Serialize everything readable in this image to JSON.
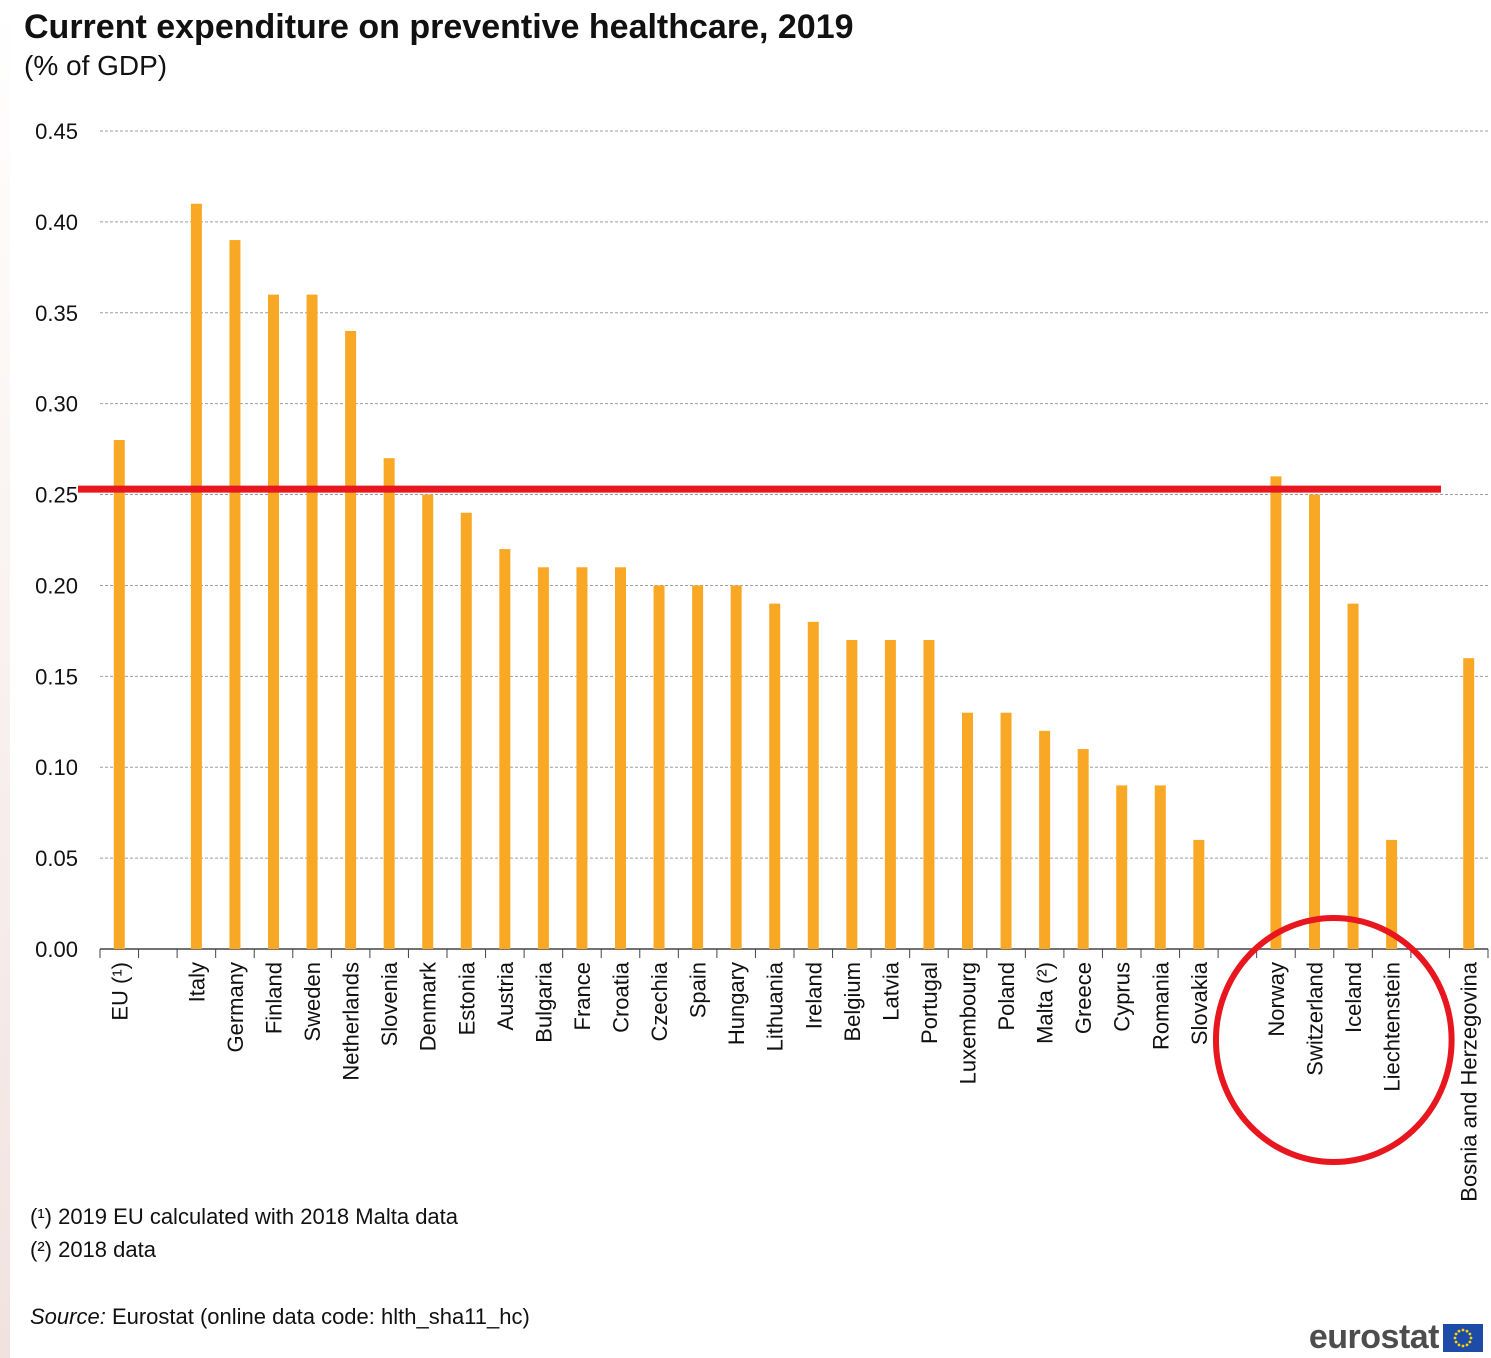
{
  "title": "Current expenditure on preventive healthcare, 2019",
  "subtitle": "(% of GDP)",
  "notes": [
    "(¹) 2019 EU calculated with 2018 Malta data",
    "(²) 2018 data"
  ],
  "source": {
    "label": "Source:",
    "text": " Eurostat (online data code: hlth_sha11_hc)"
  },
  "logo_text": "eurostat",
  "colors": {
    "bar": "#f9a825",
    "grid": "#9e9e9e",
    "axis": "#444444",
    "annotation": "#e8161e",
    "text": "#111111"
  },
  "chart_data": {
    "type": "bar",
    "title": "Current expenditure on preventive healthcare, 2019",
    "subtitle": "(% of GDP)",
    "xlabel": "",
    "ylabel": "",
    "ylim": [
      0,
      0.45
    ],
    "yticks": [
      "0.00",
      "0.05",
      "0.10",
      "0.15",
      "0.20",
      "0.25",
      "0.30",
      "0.35",
      "0.40",
      "0.45"
    ],
    "grid": true,
    "categories": [
      "EU (¹)",
      "",
      "Italy",
      "Germany",
      "Finland",
      "Sweden",
      "Netherlands",
      "Slovenia",
      "Denmark",
      "Estonia",
      "Austria",
      "Bulgaria",
      "France",
      "Croatia",
      "Czechia",
      "Spain",
      "Hungary",
      "Lithuania",
      "Ireland",
      "Belgium",
      "Latvia",
      "Portugal",
      "Luxembourg",
      "Poland",
      "Malta (²)",
      "Greece",
      "Cyprus",
      "Romania",
      "Slovakia",
      "",
      "Norway",
      "Switzerland",
      "Iceland",
      "Liechtenstein",
      "",
      "Bosnia and Herzegovina"
    ],
    "values": [
      0.28,
      null,
      0.41,
      0.39,
      0.36,
      0.36,
      0.34,
      0.27,
      0.25,
      0.24,
      0.22,
      0.21,
      0.21,
      0.21,
      0.2,
      0.2,
      0.2,
      0.19,
      0.18,
      0.17,
      0.17,
      0.17,
      0.13,
      0.13,
      0.12,
      0.11,
      0.09,
      0.09,
      0.06,
      null,
      0.26,
      0.25,
      0.19,
      0.06,
      null,
      0.16
    ],
    "annotations": [
      {
        "type": "horizontal-line",
        "y": 0.253,
        "color": "#e8161e"
      },
      {
        "type": "circle",
        "around": [
          "Norway",
          "Switzerland",
          "Iceland",
          "Liechtenstein"
        ],
        "color": "#e8161e"
      }
    ]
  }
}
